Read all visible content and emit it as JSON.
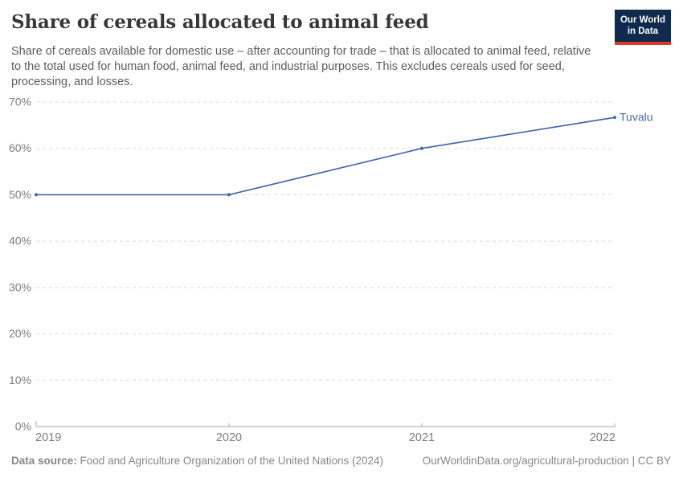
{
  "header": {
    "title": "Share of cereals allocated to animal feed",
    "subtitle": "Share of cereals available for domestic use – after accounting for trade – that is allocated to animal feed, relative to the total used for human food, animal feed, and industrial purposes. This excludes cereals used for seed, processing, and losses.",
    "logo": {
      "line1": "Our World",
      "line2": "in Data",
      "bg_color": "#102a4e",
      "accent_color": "#dc3731"
    }
  },
  "footer": {
    "data_source_label": "Data source:",
    "data_source_text": "Food and Agriculture Organization of the United Nations (2024)",
    "link_text": "OurWorldinData.org/agricultural-production | CC BY"
  },
  "chart_data": {
    "type": "line",
    "title": "Share of cereals allocated to animal feed",
    "x": [
      2019,
      2020,
      2021,
      2022
    ],
    "series": [
      {
        "name": "Tuvalu",
        "color": "#4166ac",
        "values": [
          50,
          50,
          60,
          66.67
        ]
      }
    ],
    "x_tick_labels": [
      "2019",
      "2020",
      "2021",
      "2022"
    ],
    "y_ticks": [
      0,
      10,
      20,
      30,
      40,
      50,
      60,
      70
    ],
    "y_tick_suffix": "%",
    "xlim": [
      2019,
      2022
    ],
    "ylim": [
      0,
      70
    ],
    "grid": "horizontal-dashed",
    "legend_position": "end-of-line-label",
    "colors": {
      "axis": "#a5a5a5",
      "grid": "#dadada",
      "tick_label": "#7d7d7d"
    }
  }
}
